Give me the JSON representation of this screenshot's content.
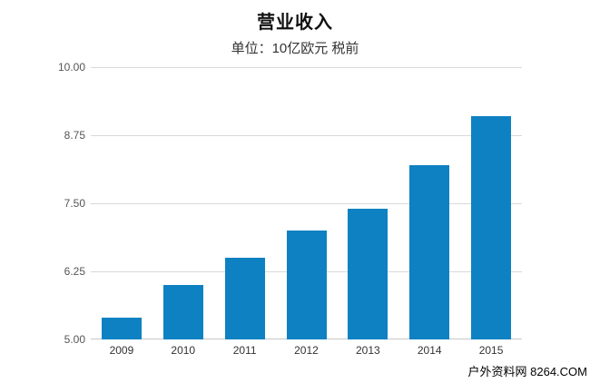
{
  "chart_data": {
    "type": "bar",
    "title": "营业收入",
    "subtitle": "单位：10亿欧元 税前",
    "categories": [
      "2009",
      "2010",
      "2011",
      "2012",
      "2013",
      "2014",
      "2015"
    ],
    "values": [
      5.4,
      6.0,
      6.5,
      7.0,
      7.4,
      8.2,
      9.1
    ],
    "xlabel": "",
    "ylabel": "",
    "ylim": [
      5.0,
      10.0
    ],
    "yticks": [
      5.0,
      6.25,
      7.5,
      8.75,
      10.0
    ],
    "ytick_labels": [
      "5.00",
      "6.25",
      "7.50",
      "8.75",
      "10.00"
    ],
    "grid": true,
    "legend": "none",
    "bar_color": "#0d81c2",
    "gridline_color": "#d9d9d9",
    "axis_line_color": "#c7c7c7"
  },
  "watermark": {
    "text": "户外资料网 8264.COM"
  }
}
